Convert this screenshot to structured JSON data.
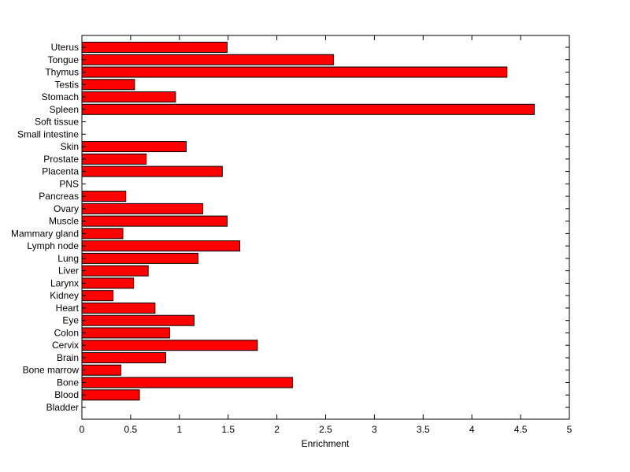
{
  "chart_data": {
    "type": "bar",
    "orientation": "horizontal",
    "title": "",
    "xlabel": "Enrichment",
    "ylabel": "",
    "xlim": [
      0,
      5
    ],
    "xticks": [
      "0",
      "0.5",
      "1",
      "1.5",
      "2",
      "2.5",
      "3",
      "3.5",
      "4",
      "4.5",
      "5"
    ],
    "xtick_values": [
      0,
      0.5,
      1,
      1.5,
      2,
      2.5,
      3,
      3.5,
      4,
      4.5,
      5
    ],
    "grid": false,
    "bar_color": "#ff0000",
    "categories": [
      "Uterus",
      "Tongue",
      "Thymus",
      "Testis",
      "Stomach",
      "Spleen",
      "Soft tissue",
      "Small intestine",
      "Skin",
      "Prostate",
      "Placenta",
      "PNS",
      "Pancreas",
      "Ovary",
      "Muscle",
      "Mammary gland",
      "Lymph node",
      "Lung",
      "Liver",
      "Larynx",
      "Kidney",
      "Heart",
      "Eye",
      "Colon",
      "Cervix",
      "Brain",
      "Bone marrow",
      "Bone",
      "Blood",
      "Bladder"
    ],
    "values": [
      1.49,
      2.58,
      4.36,
      0.54,
      0.96,
      4.64,
      0,
      0,
      1.07,
      0.66,
      1.44,
      0,
      0.45,
      1.24,
      1.49,
      0.42,
      1.62,
      1.19,
      0.68,
      0.53,
      0.32,
      0.75,
      1.15,
      0.9,
      1.8,
      0.86,
      0.4,
      2.16,
      0.59,
      0
    ]
  }
}
